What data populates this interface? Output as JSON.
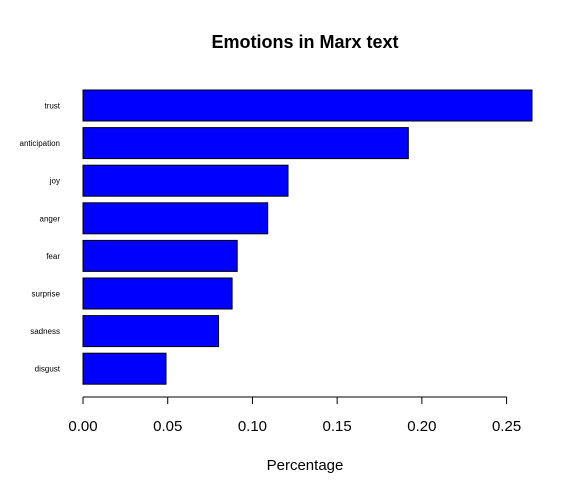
{
  "chart_data": {
    "type": "bar",
    "orientation": "horizontal",
    "title": "Emotions in Marx text",
    "xlabel": "Percentage",
    "ylabel": "",
    "categories": [
      "trust",
      "anticipation",
      "joy",
      "anger",
      "fear",
      "surprise",
      "sadness",
      "disgust"
    ],
    "values": [
      0.265,
      0.192,
      0.121,
      0.109,
      0.091,
      0.088,
      0.08,
      0.049
    ],
    "xlim": [
      0,
      0.265
    ],
    "x_ticks": [
      0.0,
      0.05,
      0.1,
      0.15,
      0.2,
      0.25
    ],
    "x_tick_labels": [
      "0.00",
      "0.05",
      "0.10",
      "0.15",
      "0.20",
      "0.25"
    ],
    "grid": false,
    "legend": "none",
    "bar_color": "#0000FF",
    "bar_border_color": "#000000"
  }
}
